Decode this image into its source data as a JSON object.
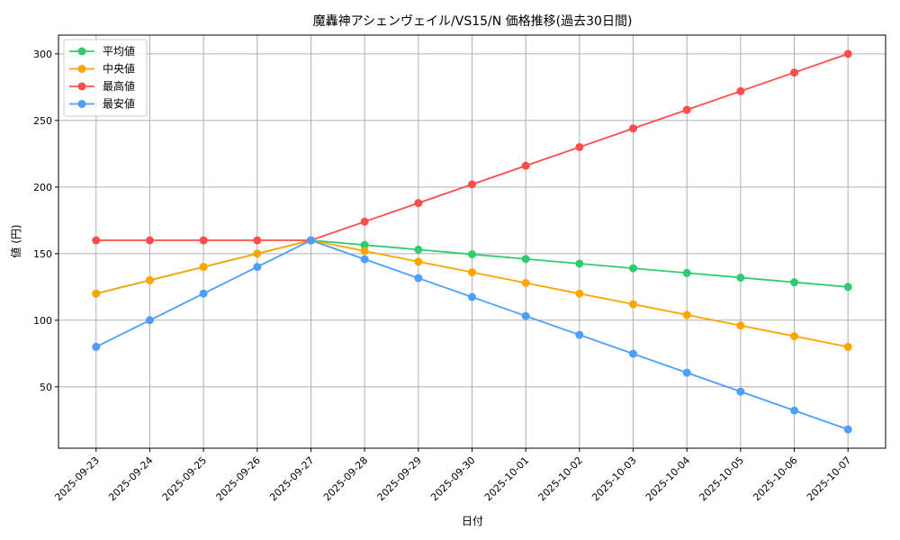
{
  "chart_data": {
    "type": "line",
    "title": "魔轟神アシェンヴェイル/VS15/N 価格推移(過去30日間)",
    "xlabel": "日付",
    "ylabel": "値 (円)",
    "categories": [
      "2025-09-23",
      "2025-09-24",
      "2025-09-25",
      "2025-09-26",
      "2025-09-27",
      "2025-09-28",
      "2025-09-29",
      "2025-09-30",
      "2025-10-01",
      "2025-10-02",
      "2025-10-03",
      "2025-10-04",
      "2025-10-05",
      "2025-10-06",
      "2025-10-07"
    ],
    "yticks": [
      50,
      100,
      150,
      200,
      250,
      300
    ],
    "ylim": [
      3.9,
      314.1
    ],
    "grid": true,
    "legend_position": "top-left",
    "series": [
      {
        "name": "平均値",
        "color": "#2ecc71",
        "values": [
          120,
          130,
          140,
          150,
          160,
          156.5,
          153,
          149.5,
          146,
          142.5,
          139,
          135.5,
          132,
          128.5,
          125
        ]
      },
      {
        "name": "中央値",
        "color": "#ffa500",
        "values": [
          120,
          130,
          140,
          150,
          160,
          152,
          144,
          136,
          128,
          120,
          112,
          104,
          96,
          88,
          80
        ]
      },
      {
        "name": "最高値",
        "color": "#ff4d4d",
        "values": [
          160,
          160,
          160,
          160,
          160,
          174,
          188,
          202,
          216,
          230,
          244,
          258,
          272,
          286,
          300
        ]
      },
      {
        "name": "最安値",
        "color": "#4d9fff",
        "values": [
          80,
          100,
          120,
          140,
          160,
          145.8,
          131.6,
          117.4,
          103.2,
          89,
          74.8,
          60.6,
          46.4,
          32.2,
          18
        ]
      }
    ]
  }
}
